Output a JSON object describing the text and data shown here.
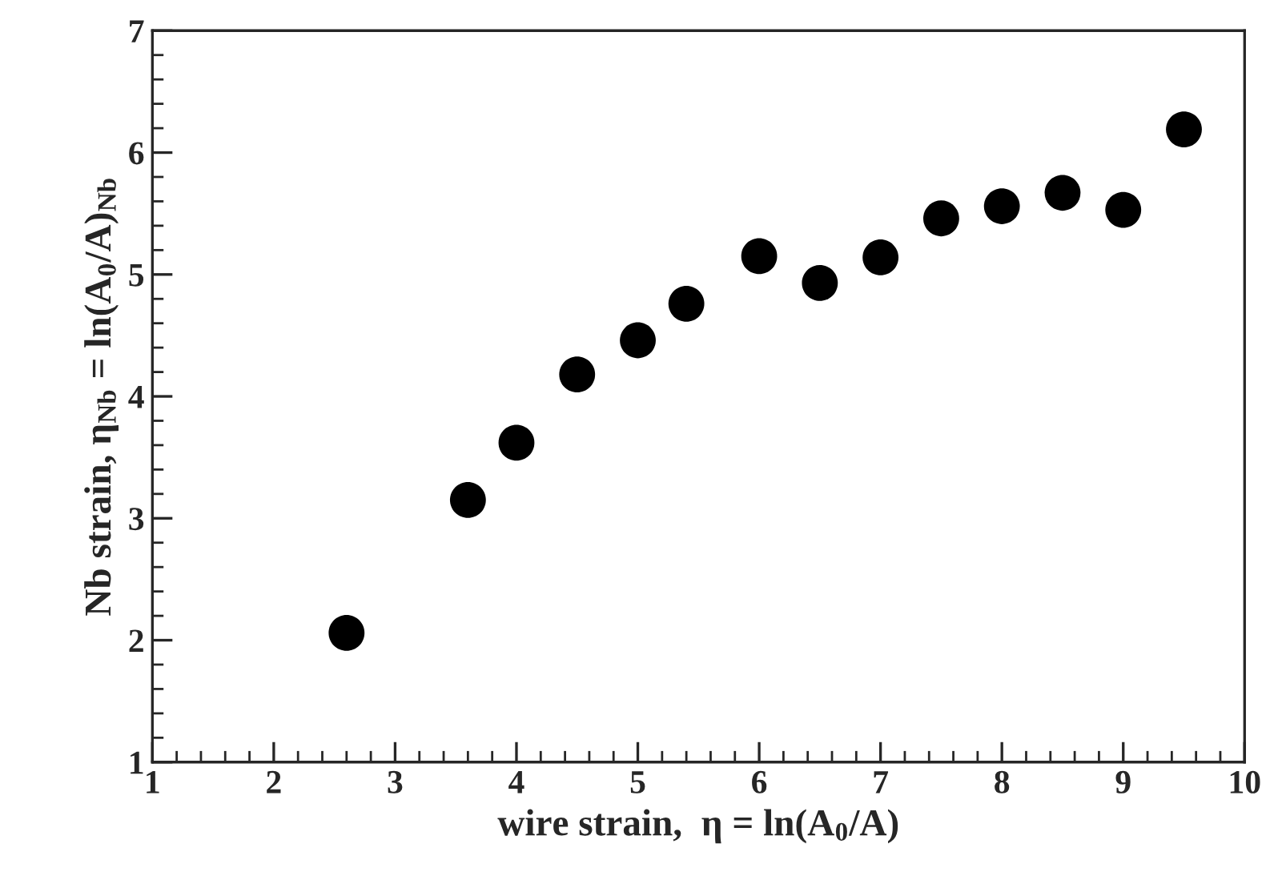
{
  "chart_data": {
    "type": "scatter",
    "xlabel": "wire strain,  η = ln(A$_{0}$/A)",
    "ylabel": "Nb strain, η$_{Nb}$ = ln(A$_{0}$/A)$_{Nb}$",
    "x": [
      2.6,
      3.6,
      4.0,
      4.5,
      5.0,
      5.4,
      6.0,
      6.5,
      7.0,
      7.5,
      8.0,
      8.5,
      9.0,
      9.5
    ],
    "series": [
      {
        "color": "#000000",
        "values": [
          2.06,
          3.15,
          3.62,
          4.18,
          4.46,
          4.76,
          5.15,
          4.93,
          5.14,
          5.46,
          5.56,
          5.67,
          5.53,
          6.19
        ]
      }
    ],
    "xlim": [
      1,
      10
    ],
    "xticks": [
      1,
      2,
      3,
      4,
      5,
      6,
      7,
      8,
      9,
      10
    ],
    "ylim": [
      1,
      7
    ],
    "yticks": [
      1,
      2,
      3,
      4,
      5,
      6,
      7
    ],
    "marker": "circle",
    "grid": false,
    "legend": false
  }
}
